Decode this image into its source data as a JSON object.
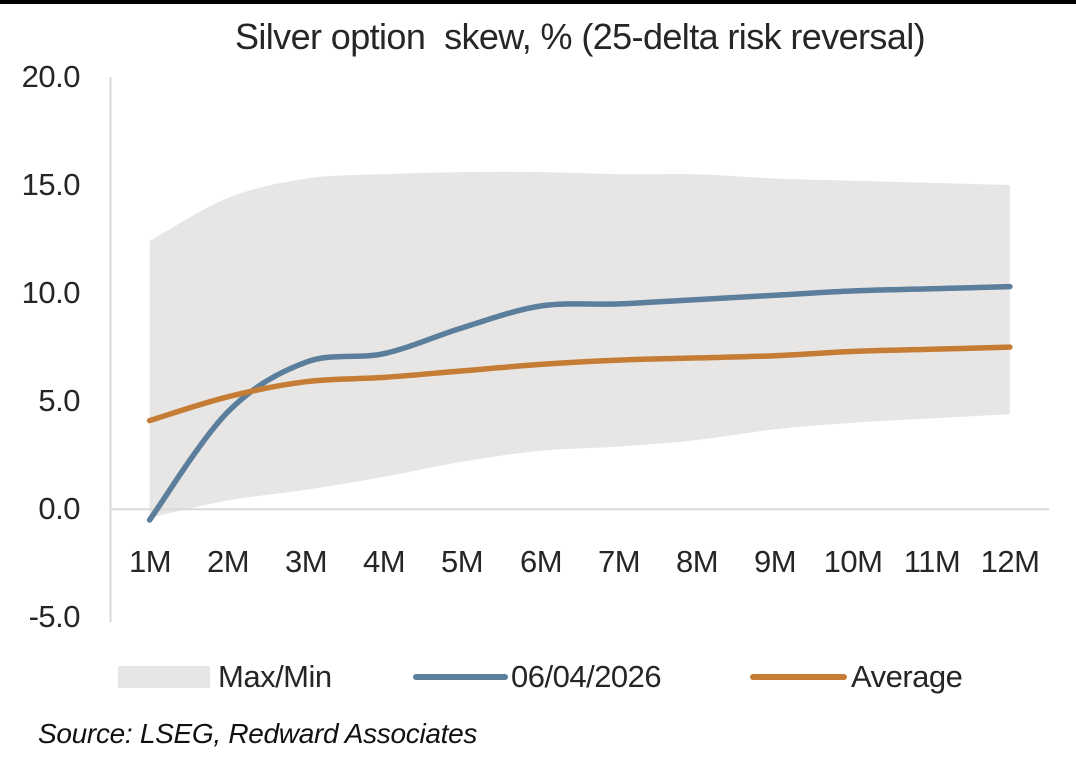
{
  "title": "Silver option  skew, % (25-delta risk reversal)",
  "source_note": "Source: LSEG, Redward Associates",
  "legend": {
    "items": [
      {
        "label": "Max/Min",
        "swatch": "band"
      },
      {
        "label": "06/04/2026",
        "swatch": "line"
      },
      {
        "label": "Average",
        "swatch": "line"
      }
    ]
  },
  "chart_data": {
    "type": "line",
    "title": "Silver option  skew, % (25-delta risk reversal)",
    "xlabel": "",
    "ylabel": "",
    "categories": [
      "1M",
      "2M",
      "3M",
      "4M",
      "5M",
      "6M",
      "7M",
      "8M",
      "9M",
      "10M",
      "11M",
      "12M"
    ],
    "ylim": [
      -5.0,
      20.0
    ],
    "ytick_values": [
      20,
      15,
      10,
      5,
      0,
      -5
    ],
    "ytick_labels": [
      "20.0",
      "15.0",
      "10.0",
      "5.0",
      "0.0",
      "-5.0"
    ],
    "grid": "zero-line-only",
    "legend_position": "bottom",
    "band": {
      "name": "Max/Min",
      "color": "#e8e6e5",
      "max": [
        12.4,
        14.4,
        15.3,
        15.5,
        15.6,
        15.6,
        15.5,
        15.5,
        15.3,
        15.2,
        15.1,
        15.0
      ],
      "min": [
        -0.4,
        0.4,
        0.9,
        1.5,
        2.2,
        2.7,
        2.9,
        3.2,
        3.7,
        4.0,
        4.2,
        4.4
      ]
    },
    "series": [
      {
        "name": "06/04/2026",
        "color": "#5a7e9b",
        "values": [
          -0.5,
          4.5,
          6.8,
          7.2,
          8.4,
          9.4,
          9.5,
          9.7,
          9.9,
          10.1,
          10.2,
          10.3
        ]
      },
      {
        "name": "Average",
        "color": "#c57d35",
        "values": [
          4.1,
          5.2,
          5.9,
          6.1,
          6.4,
          6.7,
          6.9,
          7.0,
          7.1,
          7.3,
          7.4,
          7.5
        ]
      }
    ],
    "axis_color": "#d9d9d9",
    "text_color": "#262626"
  }
}
